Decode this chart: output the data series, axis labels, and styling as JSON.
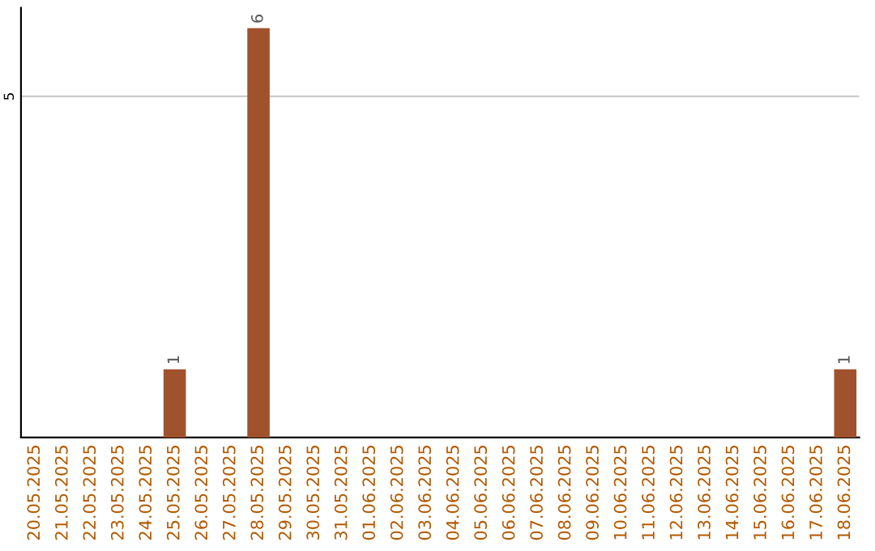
{
  "chart_data": {
    "type": "bar",
    "categories": [
      "20.05.2025",
      "21.05.2025",
      "22.05.2025",
      "23.05.2025",
      "24.05.2025",
      "25.05.2025",
      "26.05.2025",
      "27.05.2025",
      "28.05.2025",
      "29.05.2025",
      "30.05.2025",
      "31.05.2025",
      "01.06.2025",
      "02.06.2025",
      "03.06.2025",
      "04.06.2025",
      "05.06.2025",
      "06.06.2025",
      "07.06.2025",
      "08.06.2025",
      "09.06.2025",
      "10.06.2025",
      "11.06.2025",
      "12.06.2025",
      "13.06.2025",
      "14.06.2025",
      "15.06.2025",
      "16.06.2025",
      "17.06.2025",
      "18.06.2025"
    ],
    "values": [
      0,
      0,
      0,
      0,
      0,
      1,
      0,
      0,
      6,
      0,
      0,
      0,
      0,
      0,
      0,
      0,
      0,
      0,
      0,
      0,
      0,
      0,
      0,
      0,
      0,
      0,
      0,
      0,
      0,
      1
    ],
    "value_labels": [
      null,
      null,
      null,
      null,
      null,
      "1",
      null,
      null,
      "6",
      null,
      null,
      null,
      null,
      null,
      null,
      null,
      null,
      null,
      null,
      null,
      null,
      null,
      null,
      null,
      null,
      null,
      null,
      null,
      null,
      "1"
    ],
    "color": "#a0522d",
    "ylim": [
      0,
      6.3
    ],
    "yticks": [
      5
    ],
    "grid": "y"
  }
}
